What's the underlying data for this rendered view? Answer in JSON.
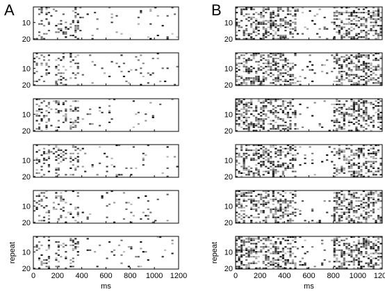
{
  "panel_labels": [
    "A",
    "B"
  ],
  "chart_data": [
    {
      "type": "heatmap",
      "panel": "A",
      "description_of_values": "rows = repeat 1..20, columns = 20 ms bins from 0 to 1200 ms; cell value = spike density 0..1 (white to black)",
      "xlabel": "ms",
      "ylabel": "repeat",
      "xlim": [
        0,
        1200
      ],
      "xticks": [
        "0",
        "200",
        "400",
        "600",
        "800",
        "1000",
        "1200"
      ],
      "ylim": [
        1,
        20
      ],
      "yticks": [
        "10",
        "20"
      ],
      "grid": false,
      "n_trials": 6,
      "n_repeats": 20,
      "bin_ms": 20,
      "active_windows_ms": [
        [
          20,
          140
        ],
        [
          180,
          280
        ],
        [
          300,
          380
        ]
      ],
      "overall_density": 0.12,
      "seed": 11
    },
    {
      "type": "heatmap",
      "panel": "B",
      "description_of_values": "rows = repeat 1..20, columns = 20 ms bins from 0 to 1200 ms; cell value = spike density 0..1 (white to black)",
      "xlabel": "ms",
      "ylabel": "repeat",
      "xlim": [
        0,
        1200
      ],
      "xticks": [
        "0",
        "200",
        "400",
        "600",
        "800",
        "1000",
        "1200"
      ],
      "ylim": [
        1,
        20
      ],
      "yticks": [
        "10",
        "20"
      ],
      "grid": false,
      "n_trials": 6,
      "n_repeats": 20,
      "bin_ms": 20,
      "active_windows_ms": [
        [
          0,
          500
        ],
        [
          800,
          1200
        ]
      ],
      "overall_density": 0.2,
      "seed": 29
    }
  ]
}
